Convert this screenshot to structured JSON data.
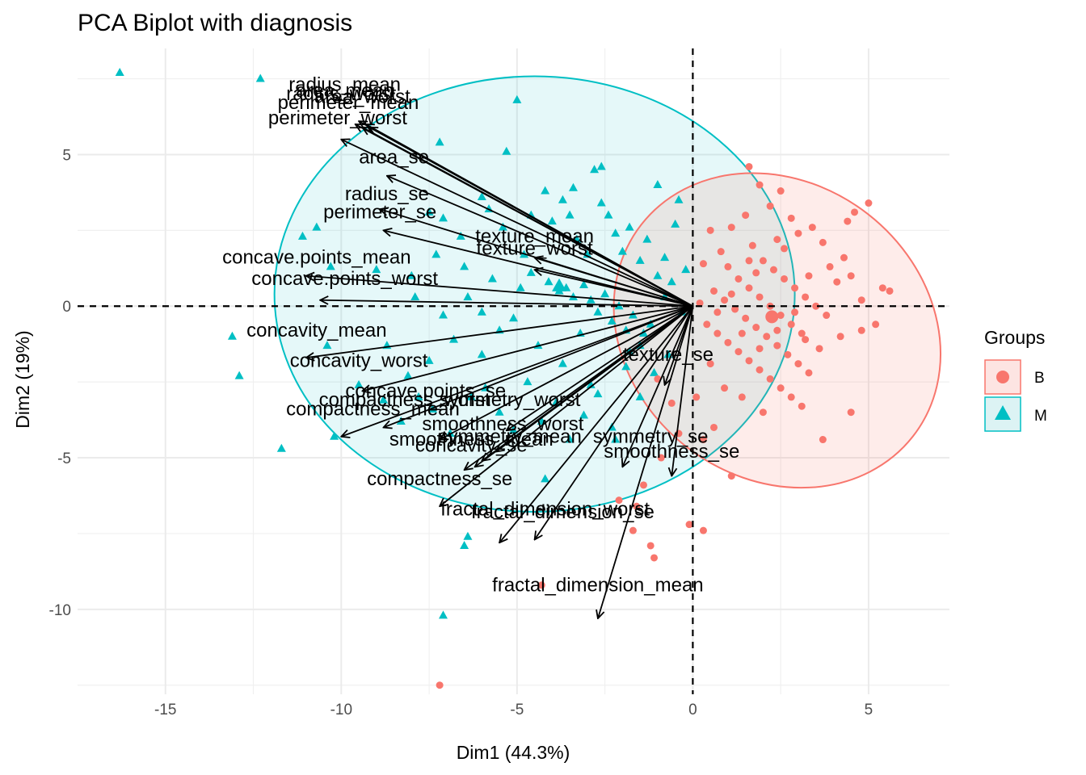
{
  "chart_data": {
    "type": "scatter",
    "title": "PCA Biplot with diagnosis",
    "xlabel": "Dim1 (44.3%)",
    "ylabel": "Dim2 (19%)",
    "xlim": [
      -17.5,
      7.3
    ],
    "ylim": [
      -12.8,
      8.5
    ],
    "x_ticks": [
      -15,
      -10,
      -5,
      0,
      5
    ],
    "y_ticks": [
      -10,
      -5,
      0,
      5
    ],
    "x_tick_labels": [
      "-15",
      "-10",
      "-5",
      "0",
      "5"
    ],
    "y_tick_labels": [
      "-10",
      "-5",
      "0",
      "5"
    ],
    "grid": true,
    "legend": {
      "title": "Groups",
      "position": "right",
      "entries": [
        {
          "label": "B",
          "shape": "circle",
          "color": "#F8766D"
        },
        {
          "label": "M",
          "shape": "triangle",
          "color": "#00BFC4"
        }
      ]
    },
    "colors": {
      "B": "#F8766D",
      "M": "#00BFC4",
      "arrow": "#000000"
    },
    "ellipses": [
      {
        "group": "B",
        "cx": 2.4,
        "cy": -0.8,
        "rx": 4.2,
        "ry": 4.9,
        "angle_deg": -52
      },
      {
        "group": "M",
        "cx": -4.5,
        "cy": 0.4,
        "rx": 7.4,
        "ry": 6.2,
        "angle_deg": 0
      }
    ],
    "group_means": [
      {
        "group": "B",
        "x": 2.25,
        "y": -0.35
      },
      {
        "group": "M",
        "x": -3.8,
        "y": 0.65
      }
    ],
    "variables": [
      {
        "name": "radius_mean",
        "x": -9.5,
        "y": 6.1,
        "lx": -9.9,
        "ly": 7.1
      },
      {
        "name": "area_mean",
        "x": -9.3,
        "y": 6.0,
        "lx": -9.9,
        "ly": 6.9
      },
      {
        "name": "radius_worst",
        "x": -9.6,
        "y": 6.0,
        "lx": -10.0,
        "ly": 6.8
      },
      {
        "name": "area_worst",
        "x": -9.2,
        "y": 5.9,
        "lx": -9.4,
        "ly": 6.7
      },
      {
        "name": "perimeter_mean",
        "x": -9.4,
        "y": 5.9,
        "lx": -9.8,
        "ly": 6.5
      },
      {
        "name": "perimeter_worst",
        "x": -10.0,
        "y": 5.5,
        "lx": -10.1,
        "ly": 6.0
      },
      {
        "name": "area_se",
        "x": -8.7,
        "y": 4.3,
        "lx": -8.5,
        "ly": 4.7
      },
      {
        "name": "radius_se",
        "x": -8.9,
        "y": 3.2,
        "lx": -8.7,
        "ly": 3.5
      },
      {
        "name": "perimeter_se",
        "x": -8.8,
        "y": 2.5,
        "lx": -8.9,
        "ly": 2.9
      },
      {
        "name": "texture_mean",
        "x": -4.5,
        "y": 1.6,
        "lx": -4.5,
        "ly": 2.1
      },
      {
        "name": "texture_worst",
        "x": -4.5,
        "y": 1.2,
        "lx": -4.5,
        "ly": 1.7
      },
      {
        "name": "concave.points_mean",
        "x": -11.0,
        "y": 1.0,
        "lx": -10.7,
        "ly": 1.4
      },
      {
        "name": "concave.points_worst",
        "x": -10.6,
        "y": 0.2,
        "lx": -9.9,
        "ly": 0.7
      },
      {
        "name": "concavity_mean",
        "x": -11.0,
        "y": -1.7,
        "lx": -10.7,
        "ly": -1.0
      },
      {
        "name": "concavity_worst",
        "x": -9.4,
        "y": -2.8,
        "lx": -9.5,
        "ly": -2.0
      },
      {
        "name": "concave.points_se",
        "x": -7.2,
        "y": -4.4,
        "lx": -7.6,
        "ly": -3.0
      },
      {
        "name": "compactness_mean",
        "x": -10.0,
        "y": -4.3,
        "lx": -9.1,
        "ly": -3.6
      },
      {
        "name": "compactness_worst",
        "x": -8.8,
        "y": -4.0,
        "lx": -8.2,
        "ly": -3.3
      },
      {
        "name": "symmetry_worst",
        "x": -5.3,
        "y": -4.1,
        "lx": -5.2,
        "ly": -3.3
      },
      {
        "name": "smoothness_worst",
        "x": -5.6,
        "y": -4.8,
        "lx": -5.4,
        "ly": -4.1
      },
      {
        "name": "smoothness_mean",
        "x": -6.2,
        "y": -5.3,
        "lx": -6.3,
        "ly": -4.6
      },
      {
        "name": "concavity_se",
        "x": -6.5,
        "y": -5.4,
        "lx": -6.3,
        "ly": -4.8
      },
      {
        "name": "symmetry_mean",
        "x": -6.0,
        "y": -5.1,
        "lx": -5.2,
        "ly": -4.5
      },
      {
        "name": "symmetry_se",
        "x": -2.0,
        "y": -5.3,
        "lx": -1.2,
        "ly": -4.5
      },
      {
        "name": "compactness_se",
        "x": -7.2,
        "y": -6.6,
        "lx": -7.2,
        "ly": -5.9
      },
      {
        "name": "texture_se",
        "x": -0.8,
        "y": -2.6,
        "lx": -0.7,
        "ly": -1.8
      },
      {
        "name": "smoothness_se",
        "x": -0.6,
        "y": -5.6,
        "lx": -0.6,
        "ly": -5.0
      },
      {
        "name": "fractal_dimension_worst",
        "x": -5.5,
        "y": -7.8,
        "lx": -4.2,
        "ly": -6.9
      },
      {
        "name": "fractal_dimension_se",
        "x": -4.5,
        "y": -7.7,
        "lx": -3.7,
        "ly": -7.0
      },
      {
        "name": "fractal_dimension_mean",
        "x": -2.7,
        "y": -10.3,
        "lx": -2.7,
        "ly": -9.4
      }
    ],
    "points_M": [
      [
        -16.3,
        7.7
      ],
      [
        -12.3,
        7.5
      ],
      [
        -7.2,
        5.4
      ],
      [
        -7.5,
        3.1
      ],
      [
        -7.1,
        2.9
      ],
      [
        -10.7,
        2.6
      ],
      [
        -11.1,
        2.3
      ],
      [
        -10.3,
        1.3
      ],
      [
        -9.0,
        1.2
      ],
      [
        -8.0,
        1.0
      ],
      [
        -7.3,
        1.7
      ],
      [
        -6.6,
        2.3
      ],
      [
        -6.0,
        3.6
      ],
      [
        -5.8,
        3.2
      ],
      [
        -5.4,
        2.6
      ],
      [
        -4.8,
        1.7
      ],
      [
        -4.6,
        3.0
      ],
      [
        -4.0,
        2.8
      ],
      [
        -3.7,
        3.5
      ],
      [
        -3.5,
        3.0
      ],
      [
        -3.3,
        2.2
      ],
      [
        -3.0,
        1.7
      ],
      [
        -2.8,
        4.5
      ],
      [
        -2.6,
        3.4
      ],
      [
        -2.4,
        3.0
      ],
      [
        -2.2,
        2.4
      ],
      [
        -2.0,
        1.8
      ],
      [
        -1.8,
        2.6
      ],
      [
        -1.5,
        1.5
      ],
      [
        -1.3,
        2.2
      ],
      [
        -1.0,
        1.0
      ],
      [
        -0.8,
        1.6
      ],
      [
        -0.6,
        0.8
      ],
      [
        -0.4,
        3.5
      ],
      [
        -0.2,
        1.2
      ],
      [
        -4.9,
        0.6
      ],
      [
        -4.1,
        0.8
      ],
      [
        -3.8,
        0.5
      ],
      [
        -3.6,
        0.6
      ],
      [
        -3.4,
        0.3
      ],
      [
        -3.1,
        0.7
      ],
      [
        -2.9,
        0.2
      ],
      [
        -2.7,
        -0.2
      ],
      [
        -2.5,
        0.4
      ],
      [
        -2.3,
        -0.5
      ],
      [
        -2.1,
        0.0
      ],
      [
        -1.9,
        -0.8
      ],
      [
        -1.7,
        -0.3
      ],
      [
        -1.5,
        -1.3
      ],
      [
        -1.2,
        -0.6
      ],
      [
        -5.1,
        -0.4
      ],
      [
        -5.5,
        -0.8
      ],
      [
        -6.0,
        -0.2
      ],
      [
        -6.4,
        0.3
      ],
      [
        -6.8,
        -1.1
      ],
      [
        -7.1,
        -0.3
      ],
      [
        -7.5,
        -1.8
      ],
      [
        -8.1,
        -2.3
      ],
      [
        -8.7,
        -1.3
      ],
      [
        -10.4,
        -1.3
      ],
      [
        -13.1,
        -1.0
      ],
      [
        -12.9,
        -2.3
      ],
      [
        -11.7,
        -4.7
      ],
      [
        -10.2,
        -4.3
      ],
      [
        -9.5,
        -2.6
      ],
      [
        -8.8,
        -3.1
      ],
      [
        -8.3,
        -3.8
      ],
      [
        -7.8,
        -3.0
      ],
      [
        -7.4,
        -3.4
      ],
      [
        -6.9,
        -4.2
      ],
      [
        -6.3,
        -3.0
      ],
      [
        -5.9,
        -2.7
      ],
      [
        -5.5,
        -3.5
      ],
      [
        -5.1,
        -4.1
      ],
      [
        -4.7,
        -2.5
      ],
      [
        -4.3,
        -3.8
      ],
      [
        -3.9,
        -3.2
      ],
      [
        -3.5,
        -4.4
      ],
      [
        -3.1,
        -3.6
      ],
      [
        -2.7,
        -2.9
      ],
      [
        -2.3,
        -4.0
      ],
      [
        -1.9,
        -2.0
      ],
      [
        -1.5,
        -3.0
      ],
      [
        -1.1,
        -2.2
      ],
      [
        -0.7,
        -1.6
      ],
      [
        -6.5,
        -7.9
      ],
      [
        -6.4,
        -7.6
      ],
      [
        -7.1,
        -10.2
      ],
      [
        -2.2,
        -4.4
      ],
      [
        -4.2,
        -5.7
      ],
      [
        -2.6,
        4.6
      ],
      [
        -3.4,
        3.9
      ],
      [
        -5.3,
        5.1
      ],
      [
        -6.5,
        1.3
      ],
      [
        -7.9,
        0.3
      ],
      [
        -4.4,
        -1.3
      ],
      [
        -3.7,
        -1.9
      ],
      [
        -2.9,
        -2.6
      ],
      [
        -1.4,
        -0.9
      ],
      [
        -0.3,
        -0.2
      ],
      [
        -5.0,
        6.8
      ],
      [
        -4.2,
        3.8
      ],
      [
        -1.0,
        4.0
      ],
      [
        -0.5,
        2.7
      ],
      [
        -6.0,
        -1.6
      ],
      [
        -3.2,
        -0.9
      ],
      [
        -1.8,
        -1.5
      ],
      [
        -0.8,
        0.3
      ],
      [
        -4.6,
        1.1
      ],
      [
        -5.7,
        0.9
      ]
    ],
    "points_B": [
      [
        -7.2,
        -12.5
      ],
      [
        -4.3,
        -9.2
      ],
      [
        -2.1,
        -6.4
      ],
      [
        -1.6,
        -6.6
      ],
      [
        -1.7,
        -7.4
      ],
      [
        -1.2,
        -7.9
      ],
      [
        -1.1,
        -8.3
      ],
      [
        -0.1,
        -7.2
      ],
      [
        0.3,
        -7.4
      ],
      [
        1.1,
        -5.6
      ],
      [
        1.6,
        4.6
      ],
      [
        3.7,
        -4.4
      ],
      [
        4.5,
        -3.5
      ],
      [
        5.0,
        3.4
      ],
      [
        4.6,
        3.1
      ],
      [
        4.4,
        2.8
      ],
      [
        5.6,
        0.5
      ],
      [
        5.4,
        0.6
      ],
      [
        5.2,
        -0.6
      ],
      [
        4.8,
        -0.8
      ],
      [
        0.5,
        2.5
      ],
      [
        0.8,
        1.8
      ],
      [
        1.0,
        1.3
      ],
      [
        1.3,
        0.9
      ],
      [
        1.6,
        0.6
      ],
      [
        1.9,
        0.3
      ],
      [
        2.2,
        0.0
      ],
      [
        2.5,
        -0.3
      ],
      [
        2.8,
        -0.6
      ],
      [
        3.1,
        -0.9
      ],
      [
        0.6,
        0.5
      ],
      [
        0.9,
        0.2
      ],
      [
        1.2,
        -0.1
      ],
      [
        1.5,
        -0.4
      ],
      [
        1.8,
        -0.7
      ],
      [
        2.1,
        -1.0
      ],
      [
        2.4,
        -1.3
      ],
      [
        2.7,
        -1.6
      ],
      [
        3.0,
        -1.9
      ],
      [
        3.3,
        -2.2
      ],
      [
        0.4,
        -0.6
      ],
      [
        0.7,
        -0.9
      ],
      [
        1.0,
        -1.2
      ],
      [
        1.3,
        -1.5
      ],
      [
        1.6,
        -1.8
      ],
      [
        1.9,
        -2.1
      ],
      [
        2.2,
        -2.4
      ],
      [
        2.5,
        -2.7
      ],
      [
        2.8,
        -3.0
      ],
      [
        3.1,
        -3.3
      ],
      [
        2.0,
        1.5
      ],
      [
        2.3,
        1.2
      ],
      [
        2.6,
        0.9
      ],
      [
        2.9,
        0.6
      ],
      [
        3.2,
        0.3
      ],
      [
        3.5,
        0.0
      ],
      [
        3.8,
        -0.3
      ],
      [
        4.1,
        0.8
      ],
      [
        4.3,
        1.6
      ],
      [
        3.7,
        2.1
      ],
      [
        3.0,
        2.4
      ],
      [
        2.4,
        2.2
      ],
      [
        1.7,
        2.0
      ],
      [
        1.1,
        2.6
      ],
      [
        0.3,
        1.4
      ],
      [
        0.2,
        0.1
      ],
      [
        0.5,
        -1.9
      ],
      [
        0.9,
        -2.7
      ],
      [
        1.4,
        -3.0
      ],
      [
        2.0,
        -3.5
      ],
      [
        1.5,
        3.0
      ],
      [
        2.2,
        3.3
      ],
      [
        2.8,
        2.9
      ],
      [
        3.4,
        2.6
      ],
      [
        3.9,
        1.3
      ],
      [
        4.5,
        1.0
      ],
      [
        4.8,
        0.2
      ],
      [
        4.2,
        -1.0
      ],
      [
        3.6,
        -1.4
      ],
      [
        3.2,
        -1.1
      ],
      [
        2.6,
        1.9
      ],
      [
        1.8,
        1.1
      ],
      [
        1.1,
        0.4
      ],
      [
        2.4,
        -0.8
      ],
      [
        2.9,
        -0.2
      ],
      [
        3.3,
        1.0
      ],
      [
        1.4,
        -0.9
      ],
      [
        1.9,
        -1.4
      ],
      [
        0.7,
        -0.2
      ],
      [
        1.6,
        1.5
      ],
      [
        -1.0,
        -2.4
      ],
      [
        -0.6,
        -3.2
      ],
      [
        -0.4,
        -4.2
      ],
      [
        0.1,
        -3.0
      ],
      [
        0.3,
        -4.4
      ],
      [
        0.6,
        -4.0
      ],
      [
        -0.9,
        -5.0
      ],
      [
        -1.4,
        -5.9
      ],
      [
        1.9,
        4.0
      ],
      [
        2.5,
        3.8
      ]
    ]
  }
}
